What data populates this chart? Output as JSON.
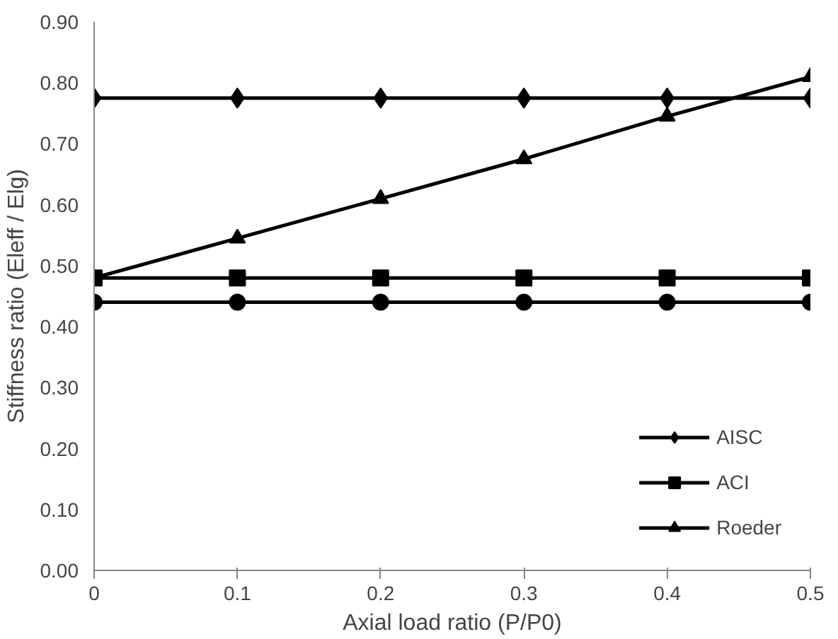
{
  "chart_data": {
    "type": "line",
    "xlabel": "Axial load ratio (P/P0)",
    "ylabel": "Stiffness ratio (Eleff / Elg)",
    "x": [
      0,
      0.1,
      0.2,
      0.3,
      0.4,
      0.5
    ],
    "series": [
      {
        "name": "AISC",
        "color": "#000000",
        "marker": "diamond",
        "values": [
          0.775,
          0.775,
          0.775,
          0.775,
          0.775,
          0.775
        ]
      },
      {
        "color": "#000000",
        "marker": "circle",
        "values": [
          0.44,
          0.44,
          0.44,
          0.44,
          0.44,
          0.44
        ]
      },
      {
        "name": "ACI",
        "color": "#000000",
        "marker": "square",
        "values": [
          0.48,
          0.48,
          0.48,
          0.48,
          0.48,
          0.48
        ]
      },
      {
        "name": "Roeder",
        "color": "#000000",
        "marker": "triangle",
        "values": [
          0.48,
          0.545,
          0.61,
          0.675,
          0.745,
          0.81
        ]
      }
    ],
    "xlim": [
      0,
      0.5
    ],
    "xticks": [
      0,
      0.1,
      0.2,
      0.3,
      0.4,
      0.5
    ],
    "ylim": [
      0,
      0.9
    ],
    "yticks": [
      {
        "value": 0,
        "label": "0.00"
      },
      {
        "value": 0.1,
        "label": "0.10"
      },
      {
        "value": 0.2,
        "label": "0.20"
      },
      {
        "value": 0.3,
        "label": "0.30"
      },
      {
        "value": 0.4,
        "label": "0.40"
      },
      {
        "value": 0.5,
        "label": "0.50"
      },
      {
        "value": 0.6,
        "label": "0.60"
      },
      {
        "value": 0.7,
        "label": "0.70"
      },
      {
        "value": 0.8,
        "label": "0.80"
      },
      {
        "value": 0.9,
        "label": "0.90"
      }
    ],
    "grid": false,
    "legend": "bottom right",
    "line_style": "solid"
  }
}
